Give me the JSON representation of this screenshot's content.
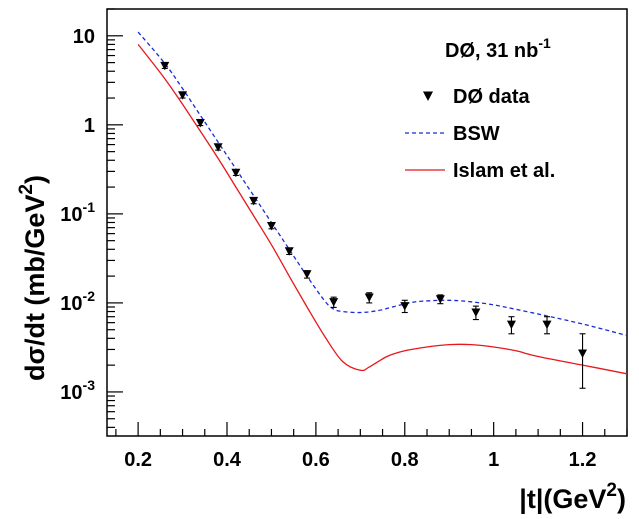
{
  "chart_data": {
    "type": "scatter",
    "annotation": {
      "main": "DØ, 31 nb",
      "sup": "-1"
    },
    "xlabel": {
      "main": "|t|(GeV",
      "sup": "2",
      "end": ")"
    },
    "ylabel": {
      "main": "dσ/dt (mb/GeV",
      "sup": "2",
      "end": ")"
    },
    "xlim": [
      0.13,
      1.3
    ],
    "ylim": [
      0.00032,
      20
    ],
    "yscale": "log",
    "grid": false,
    "legend_position": "top-right",
    "x_ticks": [
      {
        "value": 0.2,
        "label": "0.2"
      },
      {
        "value": 0.4,
        "label": "0.4"
      },
      {
        "value": 0.6,
        "label": "0.6"
      },
      {
        "value": 0.8,
        "label": "0.8"
      },
      {
        "value": 1.0,
        "label": "1"
      },
      {
        "value": 1.2,
        "label": "1.2"
      }
    ],
    "y_ticks": [
      {
        "value": 10,
        "base": "10",
        "exp": ""
      },
      {
        "value": 1,
        "base": "1",
        "exp": ""
      },
      {
        "value": 0.1,
        "base": "10",
        "exp": "-1"
      },
      {
        "value": 0.01,
        "base": "10",
        "exp": "-2"
      },
      {
        "value": 0.001,
        "base": "10",
        "exp": "-3"
      }
    ],
    "series": [
      {
        "name": "DØ data",
        "kind": "points",
        "color": "#000000",
        "points": [
          {
            "x": 0.26,
            "y": 4.6,
            "err_lo": 4.3,
            "err_hi": 4.9
          },
          {
            "x": 0.3,
            "y": 2.15,
            "err_lo": 2.0,
            "err_hi": 2.3
          },
          {
            "x": 0.34,
            "y": 1.05,
            "err_lo": 0.98,
            "err_hi": 1.12
          },
          {
            "x": 0.38,
            "y": 0.56,
            "err_lo": 0.52,
            "err_hi": 0.6
          },
          {
            "x": 0.42,
            "y": 0.29,
            "err_lo": 0.27,
            "err_hi": 0.31
          },
          {
            "x": 0.46,
            "y": 0.14,
            "err_lo": 0.13,
            "err_hi": 0.15
          },
          {
            "x": 0.5,
            "y": 0.073,
            "err_lo": 0.068,
            "err_hi": 0.078
          },
          {
            "x": 0.54,
            "y": 0.038,
            "err_lo": 0.035,
            "err_hi": 0.041
          },
          {
            "x": 0.58,
            "y": 0.021,
            "err_lo": 0.019,
            "err_hi": 0.023
          },
          {
            "x": 0.64,
            "y": 0.0102,
            "err_lo": 0.0089,
            "err_hi": 0.0116
          },
          {
            "x": 0.72,
            "y": 0.0115,
            "err_lo": 0.01,
            "err_hi": 0.013
          },
          {
            "x": 0.8,
            "y": 0.0092,
            "err_lo": 0.0078,
            "err_hi": 0.0107
          },
          {
            "x": 0.88,
            "y": 0.011,
            "err_lo": 0.0098,
            "err_hi": 0.0123
          },
          {
            "x": 0.96,
            "y": 0.0078,
            "err_lo": 0.0065,
            "err_hi": 0.0092
          },
          {
            "x": 1.04,
            "y": 0.0057,
            "err_lo": 0.0045,
            "err_hi": 0.007
          },
          {
            "x": 1.12,
            "y": 0.0057,
            "err_lo": 0.0045,
            "err_hi": 0.007
          },
          {
            "x": 1.2,
            "y": 0.0027,
            "err_lo": 0.0011,
            "err_hi": 0.0045
          }
        ]
      },
      {
        "name": "BSW",
        "kind": "line",
        "dash": "4,3",
        "color": "#1a2bd6",
        "x": [
          0.2,
          0.26,
          0.3,
          0.34,
          0.38,
          0.42,
          0.46,
          0.5,
          0.54,
          0.58,
          0.62,
          0.64,
          0.66,
          0.7,
          0.74,
          0.78,
          0.82,
          0.86,
          0.9,
          0.94,
          1.0,
          1.1,
          1.2,
          1.3
        ],
        "y": [
          11.0,
          4.9,
          2.55,
          1.28,
          0.64,
          0.32,
          0.16,
          0.08,
          0.04,
          0.02,
          0.0105,
          0.0085,
          0.008,
          0.0078,
          0.0082,
          0.0092,
          0.0102,
          0.0106,
          0.0107,
          0.0104,
          0.0095,
          0.0075,
          0.0058,
          0.0043
        ]
      },
      {
        "name": "Islam et al.",
        "kind": "line",
        "dash": "",
        "color": "#e8181a",
        "x": [
          0.2,
          0.26,
          0.3,
          0.34,
          0.38,
          0.42,
          0.46,
          0.5,
          0.54,
          0.58,
          0.62,
          0.66,
          0.7,
          0.72,
          0.76,
          0.8,
          0.85,
          0.9,
          0.95,
          1.0,
          1.05,
          1.1,
          1.2,
          1.3
        ],
        "y": [
          8.0,
          3.3,
          1.7,
          0.85,
          0.42,
          0.2,
          0.095,
          0.045,
          0.02,
          0.009,
          0.0042,
          0.0022,
          0.00175,
          0.0019,
          0.0025,
          0.0029,
          0.0032,
          0.0034,
          0.0034,
          0.0032,
          0.0029,
          0.0025,
          0.002,
          0.0016
        ]
      }
    ]
  }
}
